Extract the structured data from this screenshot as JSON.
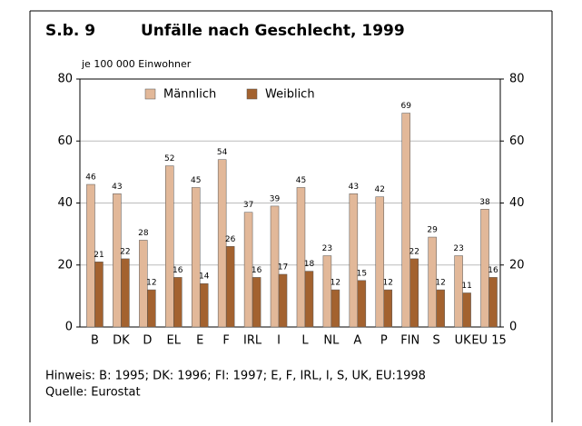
{
  "chart_data": {
    "type": "bar",
    "figure_label": "S.b. 9",
    "title": "Unfälle nach Geschlecht, 1999",
    "ylabel": "je 100 000 Einwohner",
    "categories": [
      "B",
      "DK",
      "D",
      "EL",
      "E",
      "F",
      "IRL",
      "I",
      "L",
      "NL",
      "A",
      "P",
      "FIN",
      "S",
      "UK",
      "EU 15"
    ],
    "series": [
      {
        "name": "Männlich",
        "color": "#e2b899",
        "values": [
          46,
          43,
          28,
          52,
          45,
          54,
          37,
          39,
          45,
          23,
          43,
          42,
          69,
          29,
          23,
          38
        ]
      },
      {
        "name": "Weiblich",
        "color": "#a3622f",
        "values": [
          21,
          22,
          12,
          16,
          14,
          26,
          16,
          17,
          18,
          12,
          15,
          12,
          22,
          12,
          11,
          16
        ]
      }
    ],
    "ylim": [
      0,
      80
    ],
    "yticks": [
      0,
      20,
      40,
      60,
      80
    ],
    "y2lim": [
      0,
      80
    ],
    "y2ticks": [
      0,
      20,
      40,
      60,
      80
    ],
    "grid": true,
    "notes": [
      "Hinweis: B: 1995; DK: 1996; FI: 1997; E, F, IRL, I, S, UK, EU:1998",
      "Quelle: Eurostat"
    ]
  }
}
